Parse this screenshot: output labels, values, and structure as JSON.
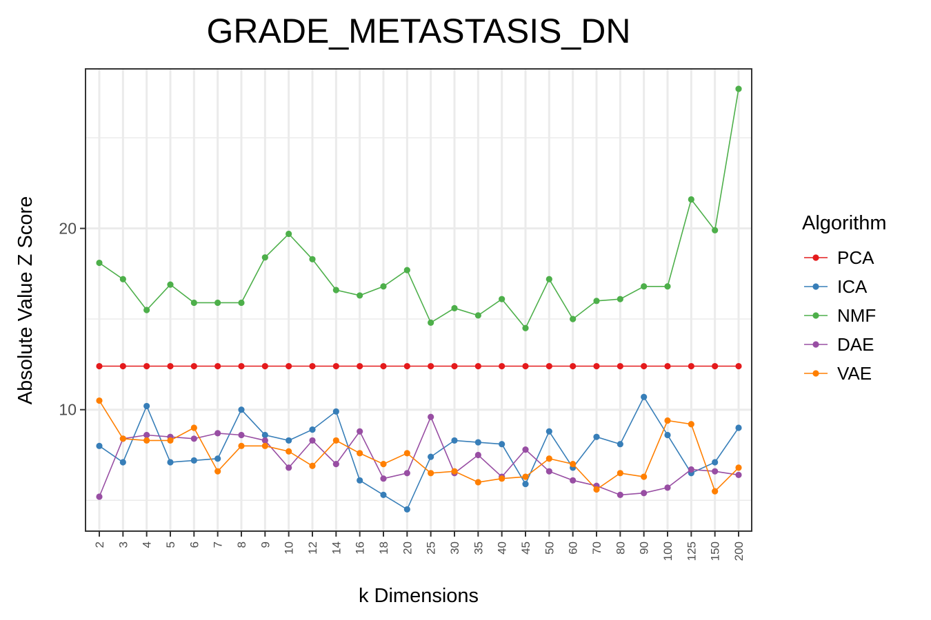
{
  "chart_data": {
    "type": "line",
    "title": "GRADE_METASTASIS_DN",
    "xlabel": "k Dimensions",
    "ylabel": "Absolute Value Z Score",
    "categories": [
      "2",
      "3",
      "4",
      "5",
      "6",
      "7",
      "8",
      "9",
      "10",
      "12",
      "14",
      "16",
      "18",
      "20",
      "25",
      "30",
      "35",
      "40",
      "45",
      "50",
      "60",
      "70",
      "80",
      "90",
      "100",
      "125",
      "150",
      "200"
    ],
    "ylim": [
      3.3,
      28.8
    ],
    "y_ticks": [
      10,
      20
    ],
    "y_minor_ticks": [
      5,
      15,
      25
    ],
    "grid": true,
    "legend": {
      "title": "Algorithm",
      "placement": "right"
    },
    "series": [
      {
        "name": "PCA",
        "color": "#E41A1C",
        "values": [
          12.4,
          12.4,
          12.4,
          12.4,
          12.4,
          12.4,
          12.4,
          12.4,
          12.4,
          12.4,
          12.4,
          12.4,
          12.4,
          12.4,
          12.4,
          12.4,
          12.4,
          12.4,
          12.4,
          12.4,
          12.4,
          12.4,
          12.4,
          12.4,
          12.4,
          12.4,
          12.4,
          12.4
        ]
      },
      {
        "name": "ICA",
        "color": "#377EB8",
        "values": [
          8.0,
          7.1,
          10.2,
          7.1,
          7.2,
          7.3,
          10.0,
          8.6,
          8.3,
          8.9,
          9.9,
          6.1,
          5.3,
          4.5,
          7.4,
          8.3,
          8.2,
          8.1,
          5.9,
          8.8,
          6.8,
          8.5,
          8.1,
          10.7,
          8.6,
          6.5,
          7.1,
          9.0
        ]
      },
      {
        "name": "NMF",
        "color": "#4DAF4A",
        "values": [
          18.1,
          17.2,
          15.5,
          16.9,
          15.9,
          15.9,
          15.9,
          18.4,
          19.7,
          18.3,
          16.6,
          16.3,
          16.8,
          17.7,
          14.8,
          15.6,
          15.2,
          16.1,
          14.5,
          17.2,
          15.0,
          16.0,
          16.1,
          16.8,
          16.8,
          21.6,
          19.9,
          27.7
        ]
      },
      {
        "name": "DAE",
        "color": "#984EA3",
        "values": [
          5.2,
          8.4,
          8.6,
          8.5,
          8.4,
          8.7,
          8.6,
          8.3,
          6.8,
          8.3,
          7.0,
          8.8,
          6.2,
          6.5,
          9.6,
          6.5,
          7.5,
          6.3,
          7.8,
          6.6,
          6.1,
          5.8,
          5.3,
          5.4,
          5.7,
          6.7,
          6.6,
          6.4
        ]
      },
      {
        "name": "VAE",
        "color": "#FF7F00",
        "values": [
          10.5,
          8.4,
          8.3,
          8.3,
          9.0,
          6.6,
          8.0,
          8.0,
          7.7,
          6.9,
          8.3,
          7.6,
          7.0,
          7.6,
          6.5,
          6.6,
          6.0,
          6.2,
          6.3,
          7.3,
          7.0,
          5.6,
          6.5,
          6.3,
          9.4,
          9.2,
          5.5,
          6.8
        ]
      }
    ]
  }
}
